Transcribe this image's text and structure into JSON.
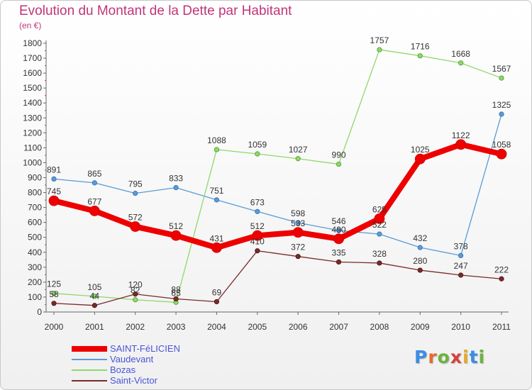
{
  "title": "Evolution du Montant de la Dette par Habitant",
  "subtitle": "(en €)",
  "logo": {
    "letters": [
      "P",
      "r",
      "o",
      "x",
      "i",
      "t",
      "i"
    ],
    "colors": [
      "#3a8ee6",
      "#e86a2a",
      "#6cb33f",
      "#d93f3f",
      "#e8a92a",
      "#3a8ee6",
      "#6cb33f"
    ]
  },
  "chart_data": {
    "type": "line",
    "categories": [
      "2000",
      "2001",
      "2002",
      "2003",
      "2004",
      "2005",
      "2006",
      "2007",
      "2008",
      "2009",
      "2010",
      "2011"
    ],
    "ylim": [
      0,
      1800
    ],
    "yticks": [
      0,
      100,
      200,
      300,
      400,
      500,
      600,
      700,
      800,
      900,
      1000,
      1100,
      1200,
      1300,
      1400,
      1500,
      1600,
      1700,
      1800
    ],
    "grid": false,
    "legend_position": "bottom-left",
    "series": [
      {
        "name": "SAINT-FéLICIEN",
        "color": "#ee0000",
        "values": [
          745,
          677,
          572,
          512,
          431,
          512,
          533,
          490,
          625,
          1025,
          1122,
          1058
        ],
        "labels": [
          "745",
          "677",
          "572",
          "512",
          "431",
          "512",
          "533",
          "490",
          "625",
          "1025",
          "1122",
          "1058"
        ]
      },
      {
        "name": "Vaudevant",
        "color": "#5b9bd5",
        "values": [
          891,
          865,
          795,
          833,
          751,
          673,
          598,
          546,
          522,
          432,
          378,
          1325
        ],
        "labels": [
          "891",
          "865",
          "795",
          "833",
          "751",
          "673",
          "598",
          "546",
          "522",
          "432",
          "378",
          "1325"
        ]
      },
      {
        "name": "Bozas",
        "color": "#8fd86a",
        "values": [
          125,
          105,
          82,
          65,
          1088,
          1059,
          1027,
          990,
          1757,
          1716,
          1668,
          1567
        ],
        "labels": [
          "125",
          "105",
          "82",
          "65",
          "1088",
          "1059",
          "1027",
          "990",
          "1757",
          "1716",
          "1668",
          "1567"
        ]
      },
      {
        "name": "Saint-Victor",
        "color": "#7a2a2a",
        "values": [
          58,
          44,
          120,
          88,
          69,
          410,
          372,
          335,
          328,
          280,
          247,
          222
        ],
        "labels": [
          "58",
          "44",
          "120",
          "88",
          "69",
          "410",
          "372",
          "335",
          "328",
          "280",
          "247",
          "222"
        ]
      }
    ]
  }
}
